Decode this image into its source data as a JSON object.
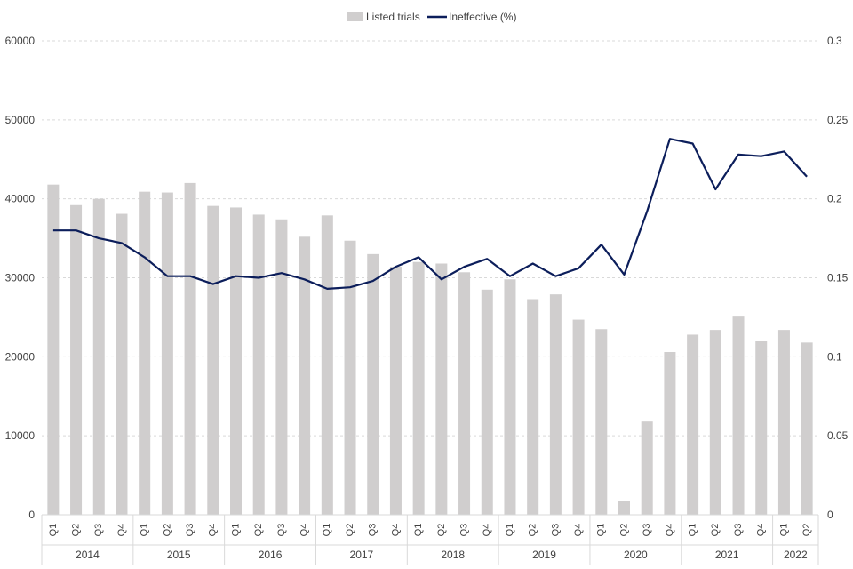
{
  "chart_data": {
    "type": "bar",
    "legend_position": "top-center",
    "grid": true,
    "categories": [
      "Q1",
      "Q2",
      "Q3",
      "Q4",
      "Q1",
      "Q2",
      "Q3",
      "Q4",
      "Q1",
      "Q2",
      "Q3",
      "Q4",
      "Q1",
      "Q2",
      "Q3",
      "Q4",
      "Q1",
      "Q2",
      "Q3",
      "Q4",
      "Q1",
      "Q2",
      "Q3",
      "Q4",
      "Q1",
      "Q2",
      "Q3",
      "Q4",
      "Q1",
      "Q2",
      "Q3",
      "Q4",
      "Q1",
      "Q2"
    ],
    "year_groups": [
      {
        "label": "2014",
        "count": 4
      },
      {
        "label": "2015",
        "count": 4
      },
      {
        "label": "2016",
        "count": 4
      },
      {
        "label": "2017",
        "count": 4
      },
      {
        "label": "2018",
        "count": 4
      },
      {
        "label": "2019",
        "count": 4
      },
      {
        "label": "2020",
        "count": 4
      },
      {
        "label": "2021",
        "count": 4
      },
      {
        "label": "2022",
        "count": 2
      }
    ],
    "y_left": {
      "min": 0,
      "max": 60000,
      "ticks": [
        "0",
        "10000",
        "20000",
        "30000",
        "40000",
        "50000",
        "60000"
      ]
    },
    "y_right": {
      "min": 0,
      "max": 0.3,
      "ticks": [
        "0",
        "0.05",
        "0.1",
        "0.15",
        "0.2",
        "0.25",
        "0.3"
      ]
    },
    "series": [
      {
        "name": "Listed trials",
        "type": "bar",
        "axis": "left",
        "color": "#d0cece",
        "values": [
          41800,
          39200,
          40000,
          38100,
          40900,
          40800,
          42000,
          39100,
          38900,
          38000,
          37400,
          35200,
          37900,
          34700,
          33000,
          31400,
          32000,
          31800,
          30700,
          28500,
          29800,
          27300,
          27900,
          24700,
          23500,
          1700,
          11800,
          20600,
          22800,
          23400,
          25200,
          22000,
          23400,
          21800
        ]
      },
      {
        "name": "Ineffective (%)",
        "type": "line",
        "axis": "right",
        "color": "#0c1e5b",
        "values": [
          0.18,
          0.18,
          0.175,
          0.172,
          0.163,
          0.151,
          0.151,
          0.146,
          0.151,
          0.15,
          0.153,
          0.149,
          0.143,
          0.144,
          0.148,
          0.157,
          0.163,
          0.149,
          0.157,
          0.162,
          0.151,
          0.159,
          0.151,
          0.156,
          0.171,
          0.152,
          0.192,
          0.238,
          0.235,
          0.206,
          0.228,
          0.227,
          0.23,
          0.214
        ]
      }
    ]
  }
}
